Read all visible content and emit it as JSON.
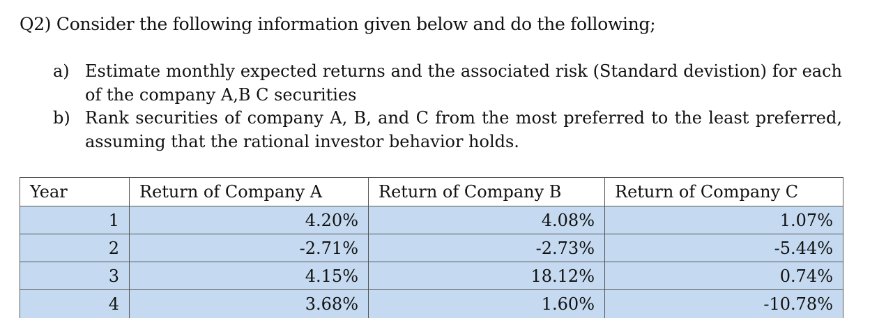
{
  "question": {
    "title": "Q2) Consider the following information given below and do the following;"
  },
  "tasks": [
    {
      "marker": "a)",
      "text": "Estimate monthly expected returns and the associated risk (Standard devistion) for each of the company A,B C securities"
    },
    {
      "marker": "b)",
      "text": "Rank securities of company A, B, and  C from the most preferred to the least preferred, assuming that the rational investor behavior holds."
    }
  ],
  "table": {
    "headers": [
      "Year",
      "Return of Company A",
      "Return of Company B",
      "Return of Company C"
    ],
    "rows": [
      [
        "1",
        "4.20%",
        "4.08%",
        "1.07%"
      ],
      [
        "2",
        "-2.71%",
        "-2.73%",
        "-5.44%"
      ],
      [
        "3",
        "4.15%",
        "18.12%",
        "0.74%"
      ],
      [
        "4",
        "3.68%",
        "1.60%",
        "-10.78%"
      ]
    ]
  },
  "colors": {
    "cell_background": "#c5daf0",
    "border": "#555555"
  }
}
